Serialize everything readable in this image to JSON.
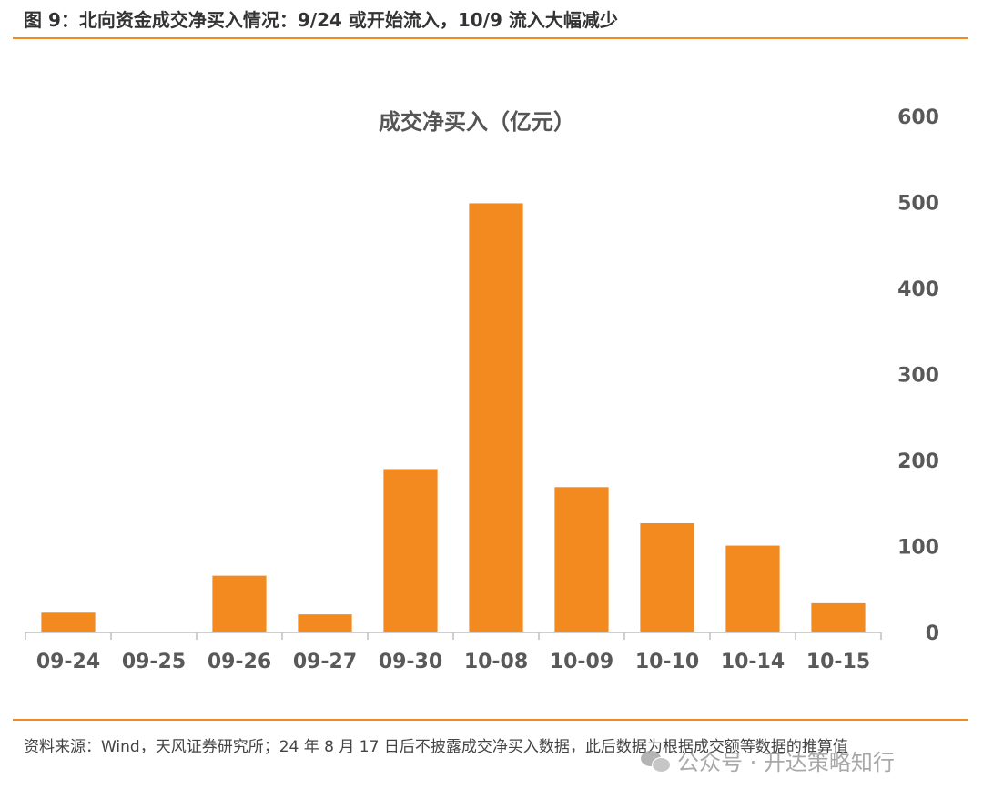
{
  "header": {
    "figure_title": "图 9：北向资金成交净买入情况：9/24 或开始流入，10/9 流入大幅减少"
  },
  "source_note": "资料来源：Wind，天风证券研究所；24 年 8 月 17 日后不披露成交净买入数据，此后数据为根据成交额等数据的推算值",
  "watermark": {
    "text": "公众号 · 开达策略知行",
    "icon": "wechat-icon"
  },
  "chart_data": {
    "type": "bar",
    "title": "成交净买入（亿元）",
    "xlabel": "",
    "ylabel": "",
    "categories": [
      "09-24",
      "09-25",
      "09-26",
      "09-27",
      "09-30",
      "10-08",
      "10-09",
      "10-10",
      "10-14",
      "10-15"
    ],
    "values": [
      23,
      0,
      66,
      21,
      190,
      499,
      169,
      127,
      101,
      34
    ],
    "ylim": [
      0,
      600
    ],
    "yticks": [
      "0",
      "100",
      "200",
      "300",
      "400",
      "500",
      "600"
    ],
    "y_axis_side": "right",
    "grid": false,
    "legend": "none",
    "bar_color": "#f28a20"
  }
}
